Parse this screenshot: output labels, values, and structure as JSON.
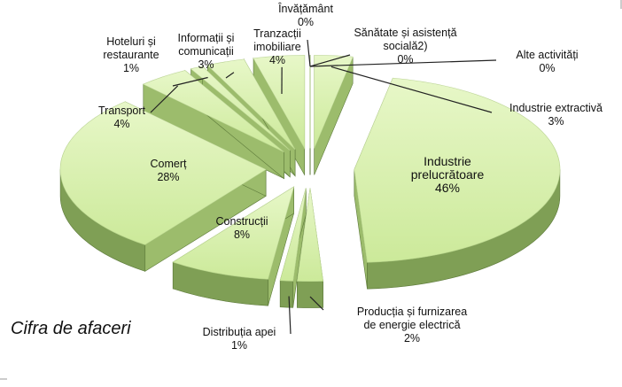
{
  "chart_data": {
    "type": "pie",
    "title": "Cifra de afaceri",
    "categories": [
      "Industrie extractivă",
      "Industrie prelucrătoare",
      "Producția și furnizarea de energie electrică",
      "Distribuția apei",
      "Construcții",
      "Comerț",
      "Transport",
      "Hoteluri și restaurante",
      "Informații și comunicații",
      "Tranzacții imobiliare",
      "Învățământ",
      "Sănătate și asistență socială2)",
      "Alte activități"
    ],
    "values": [
      3,
      46,
      2,
      1,
      8,
      28,
      4,
      1,
      3,
      4,
      0,
      0,
      0
    ],
    "value_labels": [
      "3%",
      "46%",
      "2%",
      "1%",
      "8%",
      "28%",
      "4%",
      "1%",
      "3%",
      "4%",
      "0%",
      "0%",
      "0%"
    ],
    "color": "#d6f0a6"
  }
}
